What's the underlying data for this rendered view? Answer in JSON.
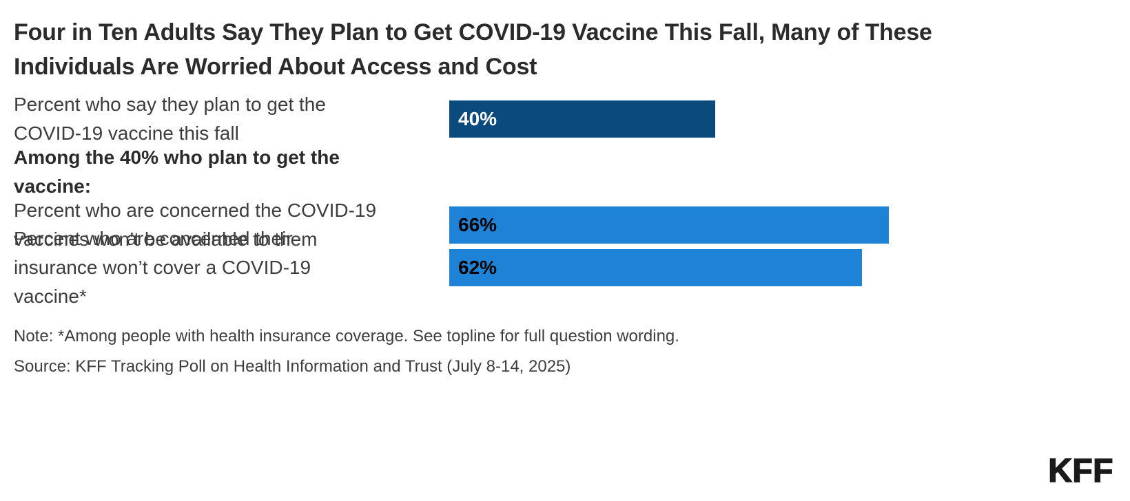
{
  "header": {
    "title": "Four in Ten Adults Say They Plan to Get COVID-19 Vaccine This Fall, Many of These\nIndividuals Are Worried About Access and Cost"
  },
  "chart_data": {
    "type": "bar",
    "orientation": "horizontal",
    "title": "Four in Ten Adults Say They Plan to Get COVID-19 Vaccine This Fall, Many of These Individuals Are Worried About Access and Cost",
    "categories": [
      "Percent who say they plan to get the COVID-19 vaccine this fall",
      "Percent who are concerned the COVID-19 vaccines won’t be available to them",
      "Percent who are concerned their insurance won’t cover a COVID-19 vaccine*"
    ],
    "values": [
      40,
      66,
      62
    ],
    "data_labels": [
      "40%",
      "66%",
      "62%"
    ],
    "section_header_before_index_1": "Among the 40% who plan to get the vaccine:",
    "xlim": [
      0,
      100
    ],
    "grid": false,
    "axes_visible": false,
    "legend": false,
    "bar_colors": [
      "#0B4A7D",
      "#1E82D7",
      "#1E82D7"
    ],
    "data_label_colors": [
      "#FFFFFF",
      "#000000",
      "#000000"
    ]
  },
  "rows": [
    {
      "kind": "bar",
      "label": "Percent who say they plan to get the\nCOVID-19 vaccine this fall",
      "value": 40,
      "value_label": "40%",
      "fill": "#0B4A7D",
      "value_color": "#FFFFFF"
    },
    {
      "kind": "section-header",
      "label": "Among the 40% who plan to get the\nvaccine:"
    },
    {
      "kind": "bar",
      "label": "Percent who are concerned the COVID-19\nvaccines won’t be available to them",
      "value": 66,
      "value_label": "66%",
      "fill": "#1E82D7",
      "value_color": "#000000"
    },
    {
      "kind": "bar",
      "label": "Percent who are concerned their\ninsurance won’t cover a COVID-19\nvaccine*",
      "value": 62,
      "value_label": "62%",
      "fill": "#1E82D7",
      "value_color": "#000000"
    }
  ],
  "footer": {
    "note": "Note: *Among people with health insurance coverage. See topline for full question wording.",
    "source": "Source: KFF Tracking Poll on Health Information and Trust (July 8-14, 2025)",
    "logo": "KFF"
  },
  "colors": {
    "dark_blue": "#0B4A7D",
    "light_blue": "#1E82D7",
    "title_text": "#2B2B2B",
    "body_text": "#3D3D3D",
    "background": "#FFFFFF"
  }
}
